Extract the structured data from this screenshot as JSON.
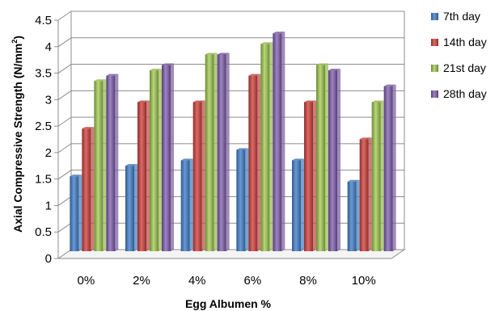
{
  "chart_data": {
    "type": "bar",
    "xlabel": "Egg Albumen %",
    "ylabel_main": "Axial Compressive Strength (N/mm",
    "ylabel_sup": "2",
    "ylabel_end": ")",
    "ylim": [
      0,
      4.5
    ],
    "y_ticks": [
      "0",
      "0.5",
      "1",
      "1.5",
      "2",
      "2.5",
      "3",
      "3.5",
      "4",
      "4.5"
    ],
    "y_tick_values": [
      0,
      0.5,
      1,
      1.5,
      2,
      2.5,
      3,
      3.5,
      4,
      4.5
    ],
    "grid": true,
    "legend_position": "right",
    "categories": [
      "0%",
      "2%",
      "4%",
      "6%",
      "8%",
      "10%"
    ],
    "series": [
      {
        "name": "7th day",
        "color": "#4F81BD",
        "values": [
          1.4,
          1.6,
          1.7,
          1.9,
          1.7,
          1.3
        ]
      },
      {
        "name": "14th day",
        "color": "#C0504D",
        "values": [
          2.3,
          2.8,
          2.8,
          3.3,
          2.8,
          2.1
        ]
      },
      {
        "name": "21st day",
        "color": "#9BBB59",
        "values": [
          3.2,
          3.4,
          3.7,
          3.9,
          3.5,
          2.8
        ]
      },
      {
        "name": "28th day",
        "color": "#8064A2",
        "values": [
          3.3,
          3.5,
          3.7,
          4.1,
          3.4,
          3.1
        ]
      }
    ]
  }
}
